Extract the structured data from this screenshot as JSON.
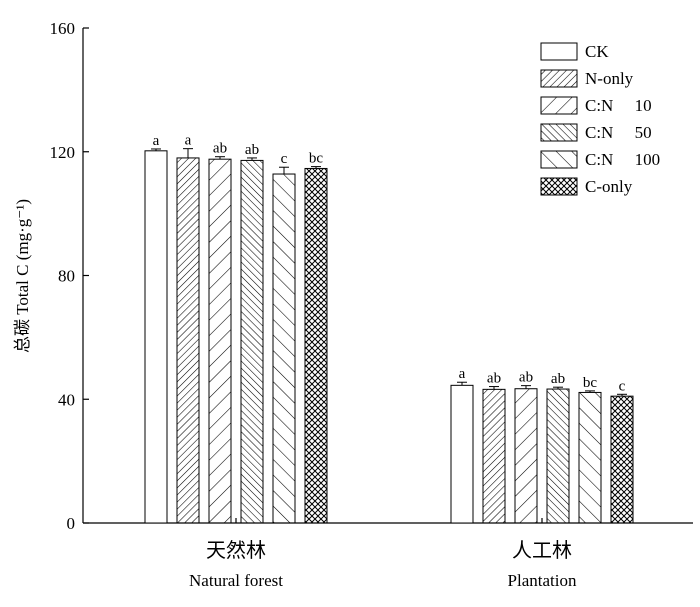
{
  "chart_data": {
    "type": "bar",
    "ylabel": "总碳 Total C (mg·g⁻¹)",
    "ylim": [
      0,
      160
    ],
    "yticks": [
      0,
      40,
      80,
      120,
      160
    ],
    "grid": false,
    "legend_position": "top-right",
    "groups": [
      {
        "label_cn": "天然林",
        "label_en": "Natural forest"
      },
      {
        "label_cn": "人工林",
        "label_en": "Plantation"
      }
    ],
    "series": [
      {
        "name": "CK",
        "pattern": "none",
        "values": [
          120.3,
          44.5
        ],
        "errors": [
          0.6,
          1.0
        ],
        "letters": [
          "a",
          "a"
        ]
      },
      {
        "name": "N-only",
        "pattern": "diag-fine",
        "values": [
          118.0,
          43.2
        ],
        "errors": [
          3.0,
          0.9
        ],
        "letters": [
          "a",
          "ab"
        ]
      },
      {
        "name": "C:N  10",
        "pattern": "diag-wide",
        "values": [
          117.6,
          43.4
        ],
        "errors": [
          0.8,
          1.0
        ],
        "letters": [
          "ab",
          "ab"
        ]
      },
      {
        "name": "C:N  50",
        "pattern": "back-fine",
        "values": [
          117.2,
          43.3
        ],
        "errors": [
          0.8,
          0.6
        ],
        "letters": [
          "ab",
          "ab"
        ]
      },
      {
        "name": "C:N  100",
        "pattern": "back-wide",
        "values": [
          112.8,
          42.2
        ],
        "errors": [
          2.2,
          0.5
        ],
        "letters": [
          "c",
          "bc"
        ]
      },
      {
        "name": "C-only",
        "pattern": "cross",
        "values": [
          114.6,
          41.0
        ],
        "errors": [
          0.6,
          0.6
        ],
        "letters": [
          "bc",
          "c"
        ]
      }
    ]
  }
}
